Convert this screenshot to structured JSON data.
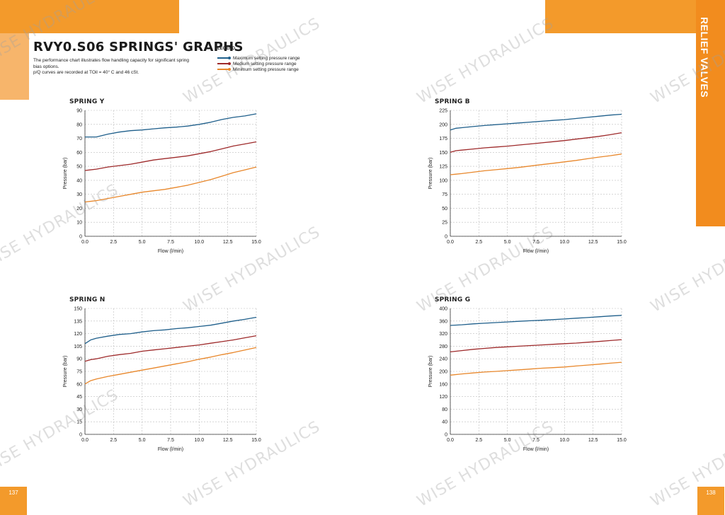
{
  "header": {
    "title": "RVY0.S06 SPRINGS' GRAPHS",
    "description_lines": [
      "The performance chart illustrates flow handling capacity for significant spring",
      "bias options.",
      "p/Q curves are recorded at TOil = 40° C and 46 cSt."
    ]
  },
  "legend": {
    "title": "LEGEND",
    "items": [
      {
        "label": "Maximum setting pressure range",
        "color": "#1F5F8B"
      },
      {
        "label": "Medium setting pressure range",
        "color": "#9E2A2B"
      },
      {
        "label": "Minimum setting pressure range",
        "color": "#E8872B"
      }
    ]
  },
  "side_tab": {
    "label": "RELIEF VALVES"
  },
  "page_numbers": {
    "left": "137",
    "right": "138"
  },
  "watermark": {
    "text": "WISE HYDRAULICS"
  },
  "colors": {
    "accent": "#F39A2B",
    "max": "#1F5F8B",
    "med": "#9E2A2B",
    "min": "#E8872B"
  },
  "chart_data": [
    {
      "type": "line",
      "title": "SPRING Y",
      "xlabel": "Flow (l/min)",
      "ylabel": "Pressure (bar)",
      "xlim": [
        0,
        15
      ],
      "ylim": [
        0,
        90
      ],
      "xticks": [
        0,
        2.5,
        5,
        7.5,
        10,
        12.5,
        15
      ],
      "yticks": [
        0,
        10,
        20,
        30,
        40,
        50,
        60,
        70,
        80,
        90
      ],
      "grid": true,
      "x": [
        0,
        1,
        2,
        3,
        4,
        5,
        6,
        7,
        8,
        9,
        10,
        11,
        12,
        13,
        14,
        15
      ],
      "series": [
        {
          "name": "Maximum setting pressure range",
          "color": "#1F5F8B",
          "values": [
            71,
            71,
            73,
            74.5,
            75.5,
            76,
            76.8,
            77.5,
            78,
            78.8,
            80,
            81.5,
            83.5,
            85,
            86,
            87.5
          ]
        },
        {
          "name": "Medium setting pressure range",
          "color": "#9E2A2B",
          "values": [
            47,
            48,
            49.5,
            50.5,
            51.5,
            53,
            54.5,
            55.5,
            56.5,
            57.5,
            59,
            60.5,
            62.5,
            64.5,
            66,
            67.5
          ]
        },
        {
          "name": "Minimum setting pressure range",
          "color": "#E8872B",
          "values": [
            24.5,
            25.5,
            27,
            28.5,
            30,
            31.5,
            32.5,
            33.5,
            35,
            36.5,
            38.5,
            40.5,
            43,
            45.5,
            47.5,
            49.5
          ]
        }
      ]
    },
    {
      "type": "line",
      "title": "SPRING B",
      "xlabel": "Flow (l/min)",
      "ylabel": "Pressure (bar)",
      "xlim": [
        0,
        15
      ],
      "ylim": [
        0,
        225
      ],
      "xticks": [
        0,
        2.5,
        5,
        7.5,
        10,
        12.5,
        15
      ],
      "yticks": [
        0,
        25,
        50,
        75,
        100,
        125,
        150,
        175,
        200,
        225
      ],
      "grid": true,
      "x": [
        0,
        0.5,
        1,
        2,
        3,
        4,
        5,
        6,
        7,
        8,
        9,
        10,
        11,
        12,
        13,
        14,
        15
      ],
      "series": [
        {
          "name": "Maximum setting pressure range",
          "color": "#1F5F8B",
          "values": [
            190,
            193,
            194,
            196,
            198,
            199.5,
            201,
            202.5,
            204,
            205.5,
            207,
            208.5,
            210.5,
            212.5,
            214.5,
            216.5,
            218
          ]
        },
        {
          "name": "Medium setting pressure range",
          "color": "#9E2A2B",
          "values": [
            150,
            153,
            154,
            156,
            158,
            159.5,
            161,
            163,
            165,
            167,
            169,
            171,
            173.5,
            176,
            178.5,
            181.5,
            185
          ]
        },
        {
          "name": "Minimum setting pressure range",
          "color": "#E8872B",
          "values": [
            110,
            111,
            112,
            114.5,
            117,
            119,
            121,
            123,
            125.5,
            128,
            130.5,
            133,
            135.5,
            138.5,
            141.5,
            144,
            147
          ]
        }
      ]
    },
    {
      "type": "line",
      "title": "SPRING N",
      "xlabel": "Flow (l/min)",
      "ylabel": "Pressure (bar)",
      "xlim": [
        0,
        15
      ],
      "ylim": [
        0,
        150
      ],
      "xticks": [
        0,
        2.5,
        5,
        7.5,
        10,
        12.5,
        15
      ],
      "yticks": [
        0,
        15,
        30,
        45,
        60,
        75,
        90,
        105,
        120,
        135,
        150
      ],
      "grid": true,
      "x": [
        0,
        0.5,
        1,
        2,
        3,
        4,
        5,
        6,
        7,
        8,
        9,
        10,
        11,
        12,
        13,
        14,
        15
      ],
      "series": [
        {
          "name": "Maximum setting pressure range",
          "color": "#1F5F8B",
          "values": [
            108,
            112.5,
            114.5,
            117,
            119,
            120,
            122,
            123.5,
            124.5,
            126,
            127,
            128.5,
            130,
            132.5,
            135,
            137,
            139.5
          ]
        },
        {
          "name": "Medium setting pressure range",
          "color": "#9E2A2B",
          "values": [
            87,
            89,
            90,
            93,
            95,
            96.5,
            99,
            100.5,
            102,
            103.5,
            105,
            106.5,
            108.5,
            110.5,
            112.5,
            115,
            117.5
          ]
        },
        {
          "name": "Minimum setting pressure range",
          "color": "#E8872B",
          "values": [
            60,
            64,
            66,
            69,
            71.5,
            74,
            76.5,
            79,
            81.5,
            84,
            86.5,
            89.5,
            92,
            95,
            97.5,
            100.5,
            103.5
          ]
        }
      ]
    },
    {
      "type": "line",
      "title": "SPRING G",
      "xlabel": "Flow (l/min)",
      "ylabel": "Pressure (bar)",
      "xlim": [
        0,
        15
      ],
      "ylim": [
        0,
        400
      ],
      "xticks": [
        0,
        2.5,
        5,
        7.5,
        10,
        12.5,
        15
      ],
      "yticks": [
        0,
        40,
        80,
        120,
        160,
        200,
        240,
        280,
        320,
        360,
        400
      ],
      "grid": true,
      "x": [
        0,
        1,
        2,
        3,
        4,
        5,
        6,
        7,
        8,
        9,
        10,
        11,
        12,
        13,
        14,
        15
      ],
      "series": [
        {
          "name": "Maximum setting pressure range",
          "color": "#1F5F8B",
          "values": [
            346,
            348,
            351,
            353,
            355,
            357,
            359,
            361,
            362.5,
            364.5,
            366.5,
            369,
            371,
            373.5,
            376,
            378
          ]
        },
        {
          "name": "Medium setting pressure range",
          "color": "#9E2A2B",
          "values": [
            262,
            266,
            270,
            273,
            276,
            278,
            280,
            282,
            284,
            286,
            288,
            290,
            292.5,
            295,
            298,
            301
          ]
        },
        {
          "name": "Minimum setting pressure range",
          "color": "#E8872B",
          "values": [
            188,
            192,
            195,
            198,
            200,
            202.5,
            205,
            207.5,
            210,
            212,
            214,
            217,
            220,
            223,
            226,
            229
          ]
        }
      ]
    }
  ]
}
